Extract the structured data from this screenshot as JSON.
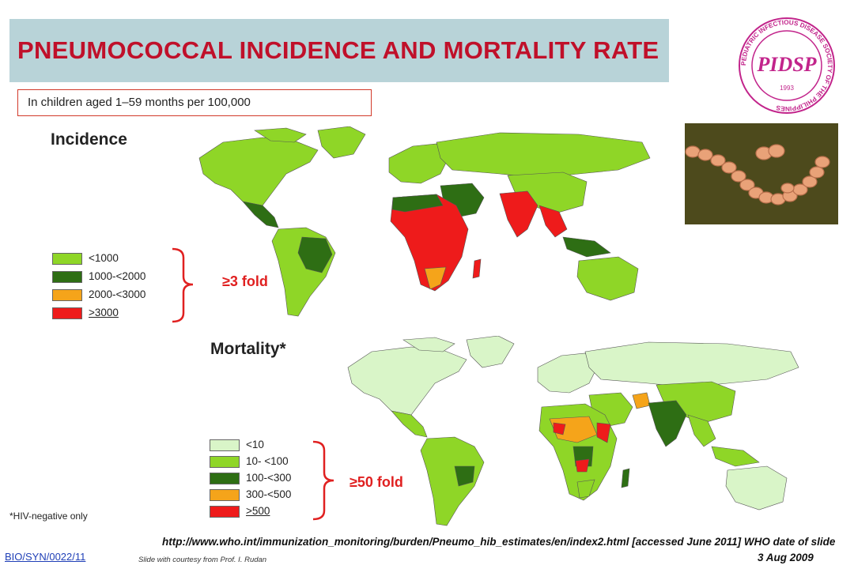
{
  "header": {
    "title": "PNEUMOCOCCAL INCIDENCE AND MORTALITY RATE",
    "subtitle": "In children aged 1–59 months per 100,000"
  },
  "logo": {
    "ring_text": "PEDIATRIC INFECTIOUS DISEASE SOCIETY OF THE PHILIPPINES",
    "center_text": "PIDSP",
    "year": "1993"
  },
  "incidence": {
    "label": "Incidence",
    "fold_label": "≥3 fold",
    "legend": [
      {
        "label": "<1000",
        "color": "#8fd627"
      },
      {
        "label": "1000-<2000",
        "color": "#2e6e14"
      },
      {
        "label": "2000-<3000",
        "color": "#f5a41a"
      },
      {
        "label": ">3000",
        "color": "#ee1b1b"
      }
    ]
  },
  "mortality": {
    "label": "Mortality*",
    "fold_label": "≥50 fold",
    "legend": [
      {
        "label": "<10",
        "color": "#d9f5c8"
      },
      {
        "label": "10- <100",
        "color": "#8fd627"
      },
      {
        "label": "100-<300",
        "color": "#2e6e14"
      },
      {
        "label": "300-<500",
        "color": "#f5a41a"
      },
      {
        "label": ">500",
        "color": "#ee1b1b"
      }
    ]
  },
  "footer": {
    "footnote": "*HIV-negative only",
    "source_url": "http://www.who.int/immunization_monitoring/burden/Pneumo_hib_estimates/en/index2.html [accessed June 2011] WHO date of slide",
    "source_date": "3 Aug 2009",
    "code": "BIO/SYN/0022/11",
    "courtesy": "Slide with courtesy from Prof. I. Rudan"
  },
  "colors": {
    "title_red": "#c0102a",
    "title_bar": "#b8d3d8",
    "ocean": "#ffffff",
    "map_light_green": "#8fd627",
    "map_dark_green": "#2e6e14",
    "map_orange": "#f5a41a",
    "map_red": "#ee1b1b",
    "map_pale_green": "#d9f5c8"
  }
}
